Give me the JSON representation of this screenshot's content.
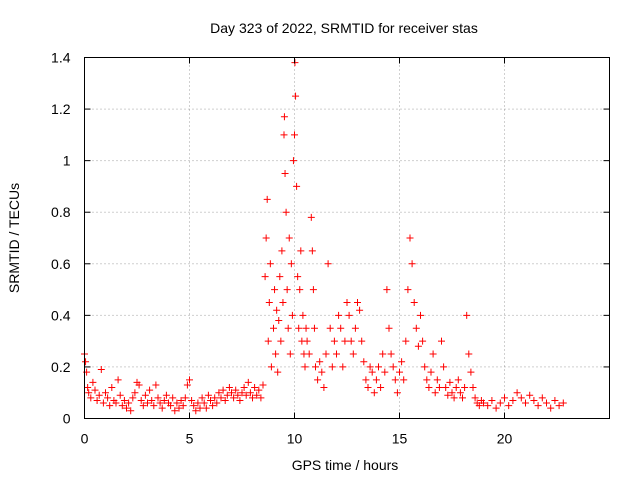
{
  "chart_data": {
    "type": "scatter",
    "title": "Day 323 of 2022, SRMTID for receiver stas",
    "xlabel": "GPS time / hours",
    "ylabel": "SRMTID / TECUs",
    "xlim": [
      0,
      25
    ],
    "ylim": [
      0,
      1.4
    ],
    "x_ticks": [
      0,
      5,
      10,
      15,
      20
    ],
    "x_tick_labels": [
      "0",
      "5",
      "10",
      "15",
      "20"
    ],
    "y_ticks": [
      0,
      0.2,
      0.4,
      0.6,
      0.8,
      1.0,
      1.2,
      1.4
    ],
    "y_tick_labels": [
      "0",
      "0.2",
      "0.4",
      "0.6",
      "0.8",
      "1",
      "1.2",
      "1.4"
    ],
    "grid": true,
    "marker": "plus",
    "series": [
      {
        "name": "stas",
        "color": "#ff0000",
        "points": [
          [
            0.0,
            0.25
          ],
          [
            0.05,
            0.22
          ],
          [
            0.1,
            0.18
          ],
          [
            0.15,
            0.12
          ],
          [
            0.2,
            0.1
          ],
          [
            0.3,
            0.08
          ],
          [
            0.4,
            0.14
          ],
          [
            0.5,
            0.11
          ],
          [
            0.6,
            0.07
          ],
          [
            0.7,
            0.09
          ],
          [
            0.8,
            0.19
          ],
          [
            0.9,
            0.06
          ],
          [
            1.0,
            0.1
          ],
          [
            1.1,
            0.08
          ],
          [
            1.2,
            0.05
          ],
          [
            1.3,
            0.12
          ],
          [
            1.4,
            0.07
          ],
          [
            1.5,
            0.06
          ],
          [
            1.6,
            0.15
          ],
          [
            1.7,
            0.09
          ],
          [
            1.8,
            0.05
          ],
          [
            1.9,
            0.07
          ],
          [
            2.0,
            0.04
          ],
          [
            2.1,
            0.06
          ],
          [
            2.2,
            0.03
          ],
          [
            2.3,
            0.08
          ],
          [
            2.4,
            0.1
          ],
          [
            2.5,
            0.14
          ],
          [
            2.6,
            0.13
          ],
          [
            2.7,
            0.07
          ],
          [
            2.8,
            0.05
          ],
          [
            2.9,
            0.09
          ],
          [
            3.0,
            0.06
          ],
          [
            3.1,
            0.11
          ],
          [
            3.2,
            0.07
          ],
          [
            3.3,
            0.05
          ],
          [
            3.4,
            0.13
          ],
          [
            3.5,
            0.08
          ],
          [
            3.6,
            0.06
          ],
          [
            3.7,
            0.04
          ],
          [
            3.8,
            0.07
          ],
          [
            3.9,
            0.09
          ],
          [
            4.0,
            0.06
          ],
          [
            4.1,
            0.05
          ],
          [
            4.2,
            0.08
          ],
          [
            4.3,
            0.03
          ],
          [
            4.4,
            0.06
          ],
          [
            4.5,
            0.04
          ],
          [
            4.6,
            0.07
          ],
          [
            4.7,
            0.05
          ],
          [
            4.8,
            0.08
          ],
          [
            4.9,
            0.13
          ],
          [
            5.0,
            0.15
          ],
          [
            5.1,
            0.07
          ],
          [
            5.2,
            0.05
          ],
          [
            5.3,
            0.03
          ],
          [
            5.4,
            0.06
          ],
          [
            5.5,
            0.04
          ],
          [
            5.6,
            0.08
          ],
          [
            5.7,
            0.06
          ],
          [
            5.8,
            0.04
          ],
          [
            5.9,
            0.09
          ],
          [
            6.0,
            0.07
          ],
          [
            6.1,
            0.05
          ],
          [
            6.2,
            0.08
          ],
          [
            6.3,
            0.06
          ],
          [
            6.4,
            0.1
          ],
          [
            6.5,
            0.08
          ],
          [
            6.6,
            0.11
          ],
          [
            6.7,
            0.07
          ],
          [
            6.8,
            0.09
          ],
          [
            6.9,
            0.12
          ],
          [
            7.0,
            0.1
          ],
          [
            7.1,
            0.08
          ],
          [
            7.2,
            0.11
          ],
          [
            7.3,
            0.09
          ],
          [
            7.4,
            0.07
          ],
          [
            7.5,
            0.1
          ],
          [
            7.6,
            0.12
          ],
          [
            7.7,
            0.09
          ],
          [
            7.8,
            0.14
          ],
          [
            7.9,
            0.1
          ],
          [
            8.0,
            0.08
          ],
          [
            8.1,
            0.12
          ],
          [
            8.2,
            0.09
          ],
          [
            8.3,
            0.11
          ],
          [
            8.4,
            0.08
          ],
          [
            8.5,
            0.13
          ],
          [
            8.6,
            0.55
          ],
          [
            8.65,
            0.7
          ],
          [
            8.7,
            0.85
          ],
          [
            8.75,
            0.3
          ],
          [
            8.8,
            0.45
          ],
          [
            8.85,
            0.6
          ],
          [
            8.9,
            0.2
          ],
          [
            9.0,
            0.35
          ],
          [
            9.05,
            0.5
          ],
          [
            9.1,
            0.25
          ],
          [
            9.15,
            0.42
          ],
          [
            9.2,
            0.18
          ],
          [
            9.25,
            0.38
          ],
          [
            9.3,
            0.55
          ],
          [
            9.35,
            0.3
          ],
          [
            9.4,
            0.65
          ],
          [
            9.45,
            0.45
          ],
          [
            9.5,
            1.1
          ],
          [
            9.52,
            1.17
          ],
          [
            9.55,
            0.95
          ],
          [
            9.6,
            0.8
          ],
          [
            9.65,
            0.5
          ],
          [
            9.7,
            0.35
          ],
          [
            9.75,
            0.7
          ],
          [
            9.8,
            0.25
          ],
          [
            9.85,
            0.6
          ],
          [
            9.9,
            0.4
          ],
          [
            9.95,
            1.0
          ],
          [
            10.0,
            1.1
          ],
          [
            10.02,
            1.38
          ],
          [
            10.05,
            1.25
          ],
          [
            10.1,
            0.9
          ],
          [
            10.15,
            0.55
          ],
          [
            10.2,
            0.35
          ],
          [
            10.25,
            0.5
          ],
          [
            10.3,
            0.65
          ],
          [
            10.35,
            0.3
          ],
          [
            10.4,
            0.4
          ],
          [
            10.45,
            0.25
          ],
          [
            10.5,
            0.2
          ],
          [
            10.55,
            0.35
          ],
          [
            10.6,
            0.3
          ],
          [
            10.7,
            0.25
          ],
          [
            10.8,
            0.78
          ],
          [
            10.85,
            0.65
          ],
          [
            10.9,
            0.5
          ],
          [
            10.95,
            0.35
          ],
          [
            11.0,
            0.2
          ],
          [
            11.1,
            0.15
          ],
          [
            11.2,
            0.22
          ],
          [
            11.3,
            0.18
          ],
          [
            11.4,
            0.12
          ],
          [
            11.5,
            0.25
          ],
          [
            11.6,
            0.6
          ],
          [
            11.7,
            0.35
          ],
          [
            11.8,
            0.2
          ],
          [
            11.9,
            0.3
          ],
          [
            12.0,
            0.25
          ],
          [
            12.1,
            0.4
          ],
          [
            12.2,
            0.35
          ],
          [
            12.3,
            0.2
          ],
          [
            12.4,
            0.3
          ],
          [
            12.5,
            0.45
          ],
          [
            12.6,
            0.4
          ],
          [
            12.7,
            0.3
          ],
          [
            12.8,
            0.25
          ],
          [
            12.9,
            0.35
          ],
          [
            13.0,
            0.45
          ],
          [
            13.1,
            0.42
          ],
          [
            13.2,
            0.3
          ],
          [
            13.3,
            0.22
          ],
          [
            13.4,
            0.15
          ],
          [
            13.5,
            0.12
          ],
          [
            13.6,
            0.2
          ],
          [
            13.7,
            0.18
          ],
          [
            13.8,
            0.1
          ],
          [
            13.9,
            0.15
          ],
          [
            14.0,
            0.2
          ],
          [
            14.1,
            0.12
          ],
          [
            14.2,
            0.25
          ],
          [
            14.3,
            0.18
          ],
          [
            14.4,
            0.5
          ],
          [
            14.5,
            0.35
          ],
          [
            14.6,
            0.25
          ],
          [
            14.7,
            0.2
          ],
          [
            14.8,
            0.15
          ],
          [
            14.9,
            0.1
          ],
          [
            15.0,
            0.18
          ],
          [
            15.1,
            0.22
          ],
          [
            15.2,
            0.15
          ],
          [
            15.3,
            0.3
          ],
          [
            15.4,
            0.5
          ],
          [
            15.5,
            0.7
          ],
          [
            15.6,
            0.6
          ],
          [
            15.7,
            0.45
          ],
          [
            15.8,
            0.35
          ],
          [
            15.9,
            0.28
          ],
          [
            16.0,
            0.4
          ],
          [
            16.1,
            0.3
          ],
          [
            16.2,
            0.2
          ],
          [
            16.3,
            0.15
          ],
          [
            16.4,
            0.12
          ],
          [
            16.5,
            0.18
          ],
          [
            16.6,
            0.25
          ],
          [
            16.7,
            0.1
          ],
          [
            16.8,
            0.15
          ],
          [
            16.9,
            0.12
          ],
          [
            17.0,
            0.3
          ],
          [
            17.1,
            0.2
          ],
          [
            17.2,
            0.12
          ],
          [
            17.3,
            0.09
          ],
          [
            17.4,
            0.14
          ],
          [
            17.5,
            0.1
          ],
          [
            17.6,
            0.08
          ],
          [
            17.7,
            0.12
          ],
          [
            17.8,
            0.15
          ],
          [
            17.9,
            0.1
          ],
          [
            18.0,
            0.08
          ],
          [
            18.1,
            0.12
          ],
          [
            18.2,
            0.4
          ],
          [
            18.3,
            0.25
          ],
          [
            18.4,
            0.18
          ],
          [
            18.5,
            0.12
          ],
          [
            18.6,
            0.08
          ],
          [
            18.7,
            0.06
          ],
          [
            18.8,
            0.05
          ],
          [
            18.9,
            0.07
          ],
          [
            19.0,
            0.06
          ],
          [
            19.2,
            0.05
          ],
          [
            19.4,
            0.07
          ],
          [
            19.6,
            0.04
          ],
          [
            19.8,
            0.06
          ],
          [
            20.0,
            0.08
          ],
          [
            20.2,
            0.05
          ],
          [
            20.4,
            0.07
          ],
          [
            20.6,
            0.1
          ],
          [
            20.8,
            0.08
          ],
          [
            21.0,
            0.06
          ],
          [
            21.2,
            0.09
          ],
          [
            21.4,
            0.07
          ],
          [
            21.6,
            0.05
          ],
          [
            21.8,
            0.08
          ],
          [
            22.0,
            0.06
          ],
          [
            22.2,
            0.04
          ],
          [
            22.4,
            0.07
          ],
          [
            22.6,
            0.05
          ],
          [
            22.8,
            0.06
          ]
        ]
      }
    ]
  }
}
